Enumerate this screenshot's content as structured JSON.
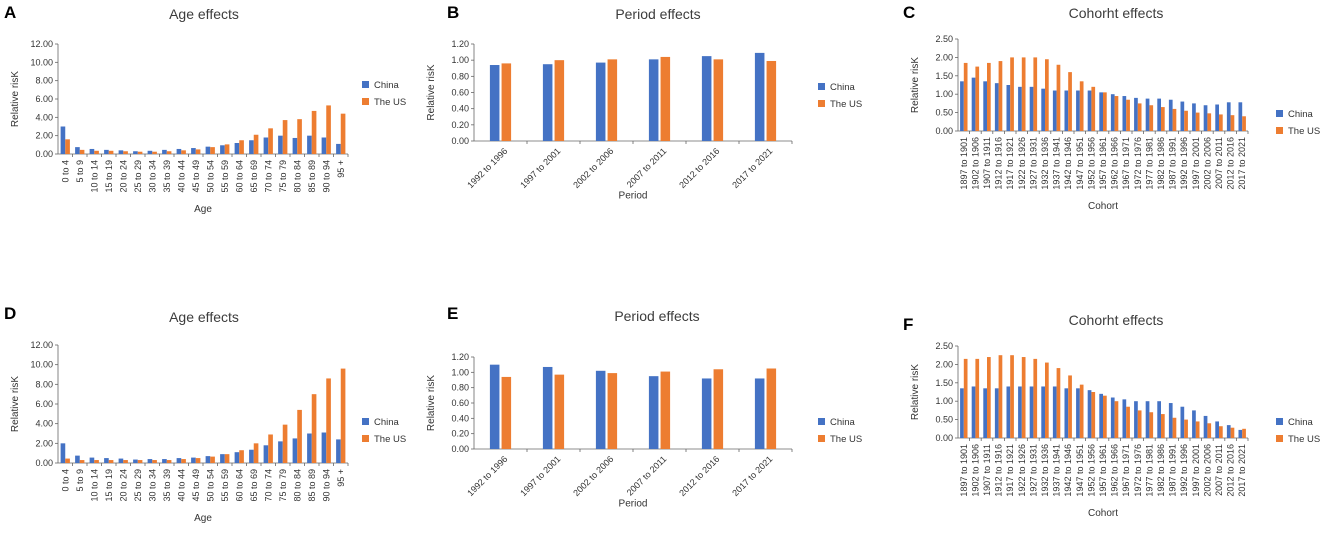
{
  "colors": {
    "china": "#4472c4",
    "us": "#ed7d31"
  },
  "chart_data": [
    {
      "panel": "A",
      "type": "bar",
      "title": "Age effects",
      "xlabel": "Age",
      "ylabel": "Relative risK",
      "ylim": [
        0,
        12
      ],
      "yticks": [
        "0.00",
        "2.00",
        "4.00",
        "6.00",
        "8.00",
        "10.00",
        "12.00"
      ],
      "categories": [
        "0 to 4",
        "5 to 9",
        "10 to 14",
        "15 to 19",
        "20 to 24",
        "25 to 29",
        "30 to 34",
        "35 to 39",
        "40 to 44",
        "45 to 49",
        "50 to 54",
        "55 to 59",
        "60 to 64",
        "65 to 69",
        "70 to 74",
        "75 to 79",
        "80 to 84",
        "85 to 89",
        "90 to 94",
        "95 +"
      ],
      "series": [
        {
          "name": "China",
          "values": [
            3.0,
            0.75,
            0.55,
            0.45,
            0.4,
            0.3,
            0.35,
            0.45,
            0.55,
            0.65,
            0.8,
            0.95,
            1.2,
            1.5,
            1.8,
            2.0,
            1.75,
            2.0,
            1.8,
            1.1
          ]
        },
        {
          "name": "The US",
          "values": [
            1.6,
            0.45,
            0.35,
            0.35,
            0.3,
            0.25,
            0.25,
            0.3,
            0.4,
            0.5,
            0.75,
            1.05,
            1.5,
            2.1,
            2.8,
            3.7,
            3.8,
            4.7,
            5.3,
            4.4
          ]
        }
      ]
    },
    {
      "panel": "B",
      "type": "bar",
      "title": "Period effects",
      "xlabel": "Period",
      "ylabel": "Relative risK",
      "ylim": [
        0,
        1.2
      ],
      "yticks": [
        "0.00",
        "0.20",
        "0.40",
        "0.60",
        "0.80",
        "1.00",
        "1.20"
      ],
      "categories": [
        "1992 to 1996",
        "1997 to 2001",
        "2002 to 2006",
        "2007 to 2011",
        "2012 to 2016",
        "2017 to 2021"
      ],
      "series": [
        {
          "name": "China",
          "values": [
            0.94,
            0.95,
            0.97,
            1.01,
            1.05,
            1.09
          ]
        },
        {
          "name": "The US",
          "values": [
            0.96,
            1.0,
            1.01,
            1.04,
            1.01,
            0.99
          ]
        }
      ]
    },
    {
      "panel": "C",
      "type": "bar",
      "title": "Cohorht effects",
      "xlabel": "Cohort",
      "ylabel": "Relative risK",
      "ylim": [
        0,
        2.5
      ],
      "yticks": [
        "0.00",
        "0.50",
        "1.00",
        "1.50",
        "2.00",
        "2.50"
      ],
      "categories": [
        "1897 to 1901",
        "1902 to 1906",
        "1907 to 1911",
        "1912 to 1916",
        "1917 to 1921",
        "1922 to 1926",
        "1927 to 1931",
        "1932 to 1936",
        "1937 to 1941",
        "1942 to 1946",
        "1947 to 1951",
        "1952 to 1956",
        "1957 to 1961",
        "1962 to 1966",
        "1967 to 1971",
        "1972 to 1976",
        "1977 to 1981",
        "1982 to 1986",
        "1987 to 1991",
        "1992 to 1996",
        "1997 to 2001",
        "2002 to 2006",
        "2007 to 2011",
        "2012 to 2016",
        "2017 to 2021"
      ],
      "series": [
        {
          "name": "China",
          "values": [
            1.35,
            1.45,
            1.35,
            1.3,
            1.25,
            1.2,
            1.2,
            1.15,
            1.1,
            1.1,
            1.1,
            1.1,
            1.05,
            1.0,
            0.95,
            0.9,
            0.88,
            0.88,
            0.85,
            0.8,
            0.75,
            0.7,
            0.72,
            0.78,
            0.78
          ]
        },
        {
          "name": "The US",
          "values": [
            1.85,
            1.75,
            1.85,
            1.9,
            2.0,
            2.0,
            2.0,
            1.95,
            1.8,
            1.6,
            1.35,
            1.2,
            1.05,
            0.95,
            0.85,
            0.75,
            0.7,
            0.65,
            0.6,
            0.55,
            0.5,
            0.48,
            0.45,
            0.43,
            0.4
          ]
        }
      ]
    },
    {
      "panel": "D",
      "type": "bar",
      "title": "Age effects",
      "xlabel": "Age",
      "ylabel": "Relative risK",
      "ylim": [
        0,
        12
      ],
      "yticks": [
        "0.00",
        "2.00",
        "4.00",
        "6.00",
        "8.00",
        "10.00",
        "12.00"
      ],
      "categories": [
        "0 to 4",
        "5 to 9",
        "10 to 14",
        "15 to 19",
        "20 to 24",
        "25 to 29",
        "30 to 34",
        "35 to 39",
        "40 to 44",
        "45 to 49",
        "50 to 54",
        "55 to 59",
        "60 to 64",
        "65 to 69",
        "70 to 74",
        "75 to 79",
        "80 to 84",
        "85 to 89",
        "90 to 94",
        "95 +"
      ],
      "series": [
        {
          "name": "China",
          "values": [
            2.0,
            0.75,
            0.55,
            0.5,
            0.45,
            0.35,
            0.4,
            0.4,
            0.5,
            0.55,
            0.7,
            0.9,
            1.1,
            1.35,
            1.8,
            2.2,
            2.5,
            3.0,
            3.1,
            2.4
          ]
        },
        {
          "name": "The US",
          "values": [
            0.45,
            0.3,
            0.3,
            0.3,
            0.3,
            0.3,
            0.3,
            0.3,
            0.4,
            0.5,
            0.65,
            0.9,
            1.3,
            2.0,
            2.9,
            3.9,
            5.4,
            7.0,
            8.6,
            9.6
          ]
        }
      ]
    },
    {
      "panel": "E",
      "type": "bar",
      "title": "Period effects",
      "xlabel": "Period",
      "ylabel": "Relative risK",
      "ylim": [
        0,
        1.2
      ],
      "yticks": [
        "0.00",
        "0.20",
        "0.40",
        "0.60",
        "0.80",
        "1.00",
        "1.20"
      ],
      "categories": [
        "1992 to 1996",
        "1997 to 2001",
        "2002 to 2006",
        "2007 to 2011",
        "2012 to 2016",
        "2017 to 2021"
      ],
      "series": [
        {
          "name": "China",
          "values": [
            1.1,
            1.07,
            1.02,
            0.95,
            0.92,
            0.92
          ]
        },
        {
          "name": "The US",
          "values": [
            0.94,
            0.97,
            0.99,
            1.01,
            1.04,
            1.05
          ]
        }
      ]
    },
    {
      "panel": "F",
      "type": "bar",
      "title": "Cohorht effects",
      "xlabel": "Cohort",
      "ylabel": "Relative risK",
      "ylim": [
        0,
        2.5
      ],
      "yticks": [
        "0.00",
        "0.50",
        "1.00",
        "1.50",
        "2.00",
        "2.50"
      ],
      "categories": [
        "1897 to 1901",
        "1902 to 1906",
        "1907 to 1911",
        "1912 to 1916",
        "1917 to 1921",
        "1922 to 1926",
        "1927 to 1931",
        "1932 to 1936",
        "1937 to 1941",
        "1942 to 1946",
        "1947 to 1951",
        "1952 to 1956",
        "1957 to 1961",
        "1962 to 1966",
        "1967 to 1971",
        "1972 to 1976",
        "1977 to 1981",
        "1982 to 1986",
        "1987 to 1991",
        "1992 to 1996",
        "1997 to 2001",
        "2002 to 2006",
        "2007 to 2011",
        "2012 to 2016",
        "2017 to 2021"
      ],
      "series": [
        {
          "name": "China",
          "values": [
            1.35,
            1.4,
            1.35,
            1.35,
            1.4,
            1.4,
            1.4,
            1.4,
            1.4,
            1.35,
            1.35,
            1.3,
            1.2,
            1.1,
            1.05,
            1.0,
            1.0,
            1.0,
            0.95,
            0.85,
            0.75,
            0.6,
            0.45,
            0.35,
            0.22
          ]
        },
        {
          "name": "The US",
          "values": [
            2.15,
            2.15,
            2.2,
            2.25,
            2.25,
            2.2,
            2.15,
            2.05,
            1.9,
            1.7,
            1.45,
            1.25,
            1.15,
            1.0,
            0.85,
            0.75,
            0.7,
            0.65,
            0.55,
            0.5,
            0.45,
            0.4,
            0.32,
            0.28,
            0.25
          ]
        }
      ]
    }
  ]
}
